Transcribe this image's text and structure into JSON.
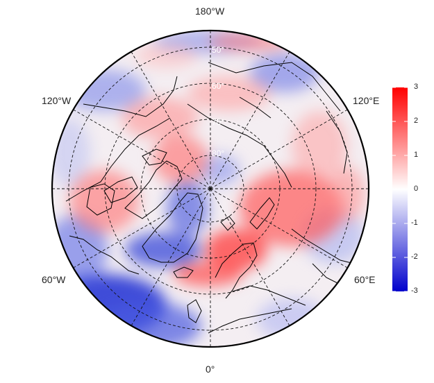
{
  "map": {
    "projection": "north-polar-stereographic",
    "longitude_labels": {
      "top": "180°W",
      "upper_left": "120°W",
      "upper_right": "120°E",
      "lower_left": "60°W",
      "lower_right": "60°E",
      "bottom": "0°"
    },
    "latitude_labels": [
      "50°",
      "60°",
      "70°",
      "80°"
    ],
    "graticule_style": "dashed",
    "coastline_color": "#000000"
  },
  "colorbar": {
    "min": -3,
    "max": 3,
    "ticks": [
      "3",
      "2",
      "1",
      "0",
      "-1",
      "-2",
      "-3"
    ],
    "colors": {
      "high": "#ff0000",
      "mid": "#ffffff",
      "low": "#0000cc"
    }
  }
}
